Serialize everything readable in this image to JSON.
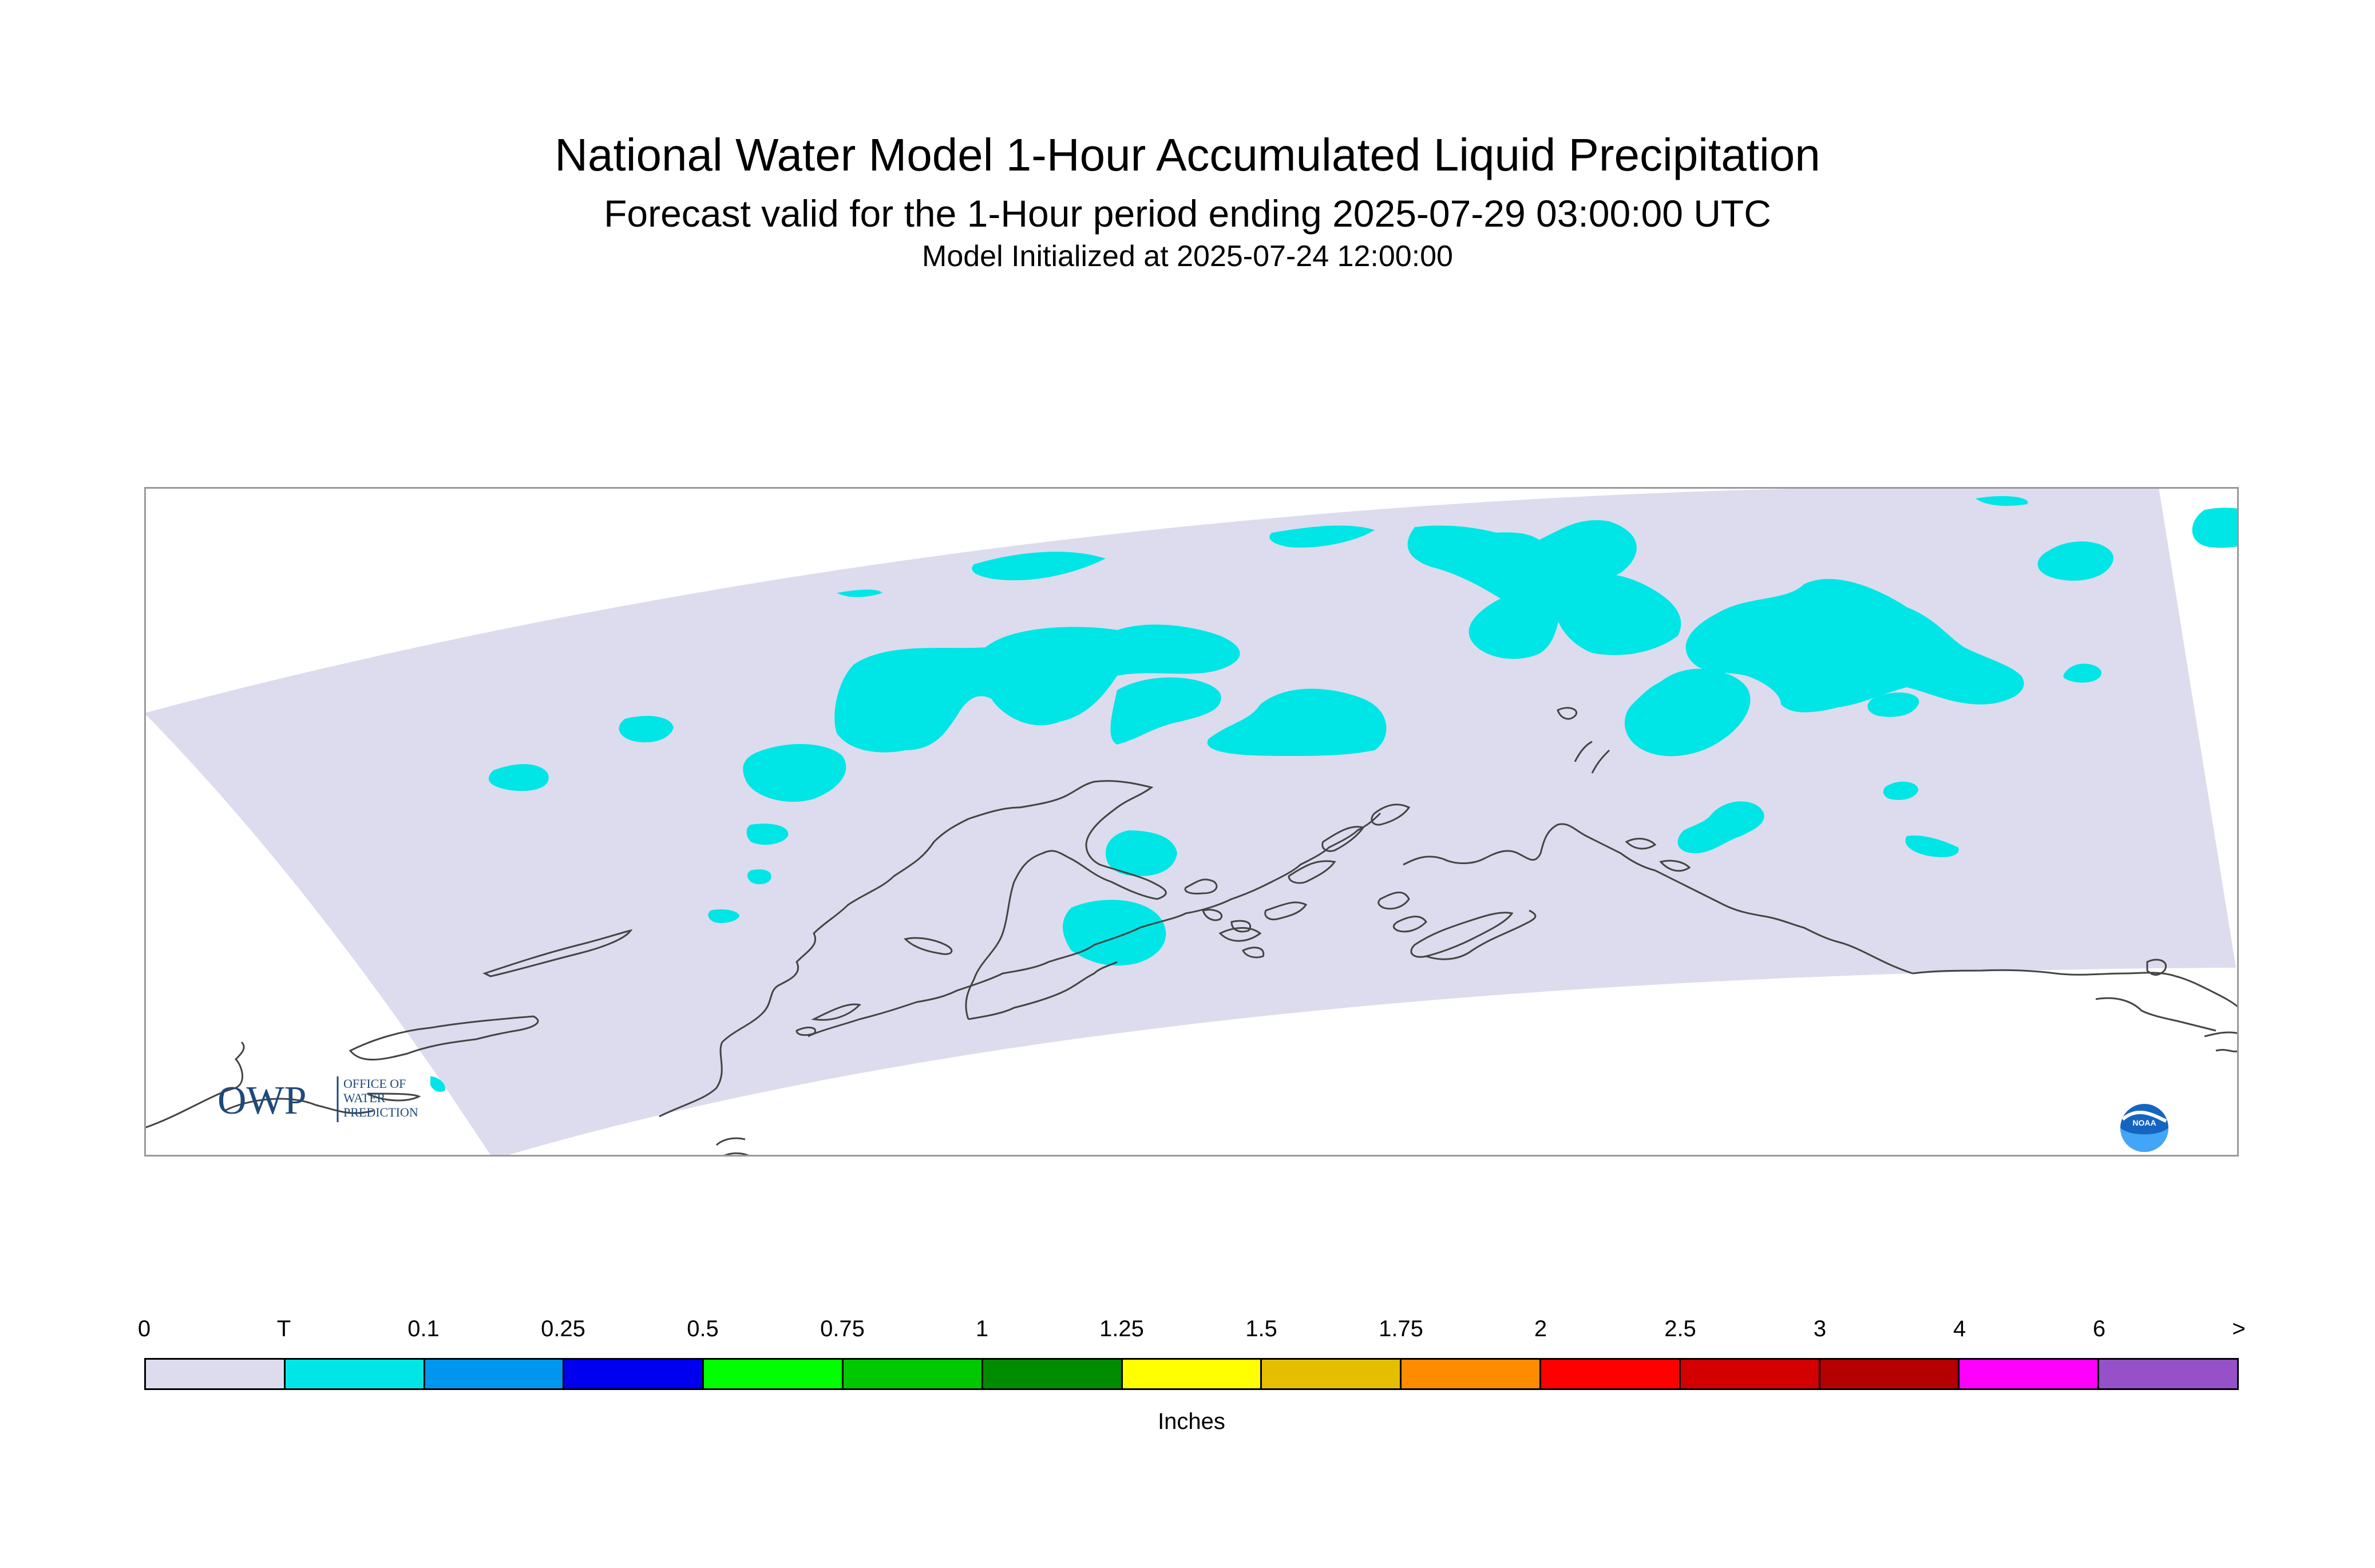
{
  "header": {
    "title": "National Water Model 1-Hour Accumulated Liquid Precipitation",
    "subtitle": "Forecast valid for the 1-Hour period ending 2025-07-29 03:00:00 UTC",
    "init": "Model Initialized at 2025-07-24 12:00:00"
  },
  "colors": {
    "domain": "#dcdcee",
    "trace": "#00e6e6",
    "coast": "#444444",
    "frame": "#999999"
  },
  "logos": {
    "owp_letters": "OWP",
    "owp_line1": "OFFICE OF",
    "owp_line2": "WATER",
    "owp_line3": "PREDICTION",
    "noaa": "NOAA"
  },
  "legend": {
    "ticks": [
      "0",
      "T",
      "0.1",
      "0.25",
      "0.5",
      "0.75",
      "1",
      "1.25",
      "1.5",
      "1.75",
      "2",
      "2.5",
      "3",
      "4",
      "6",
      ">"
    ],
    "colors": [
      "#dcdcee",
      "#00e6e6",
      "#0096f0",
      "#0000f0",
      "#00ff00",
      "#00c800",
      "#008c00",
      "#ffff00",
      "#e6be00",
      "#ff8c00",
      "#ff0000",
      "#d20000",
      "#b40000",
      "#ff00ff",
      "#9650c8"
    ],
    "units": "Inches"
  }
}
